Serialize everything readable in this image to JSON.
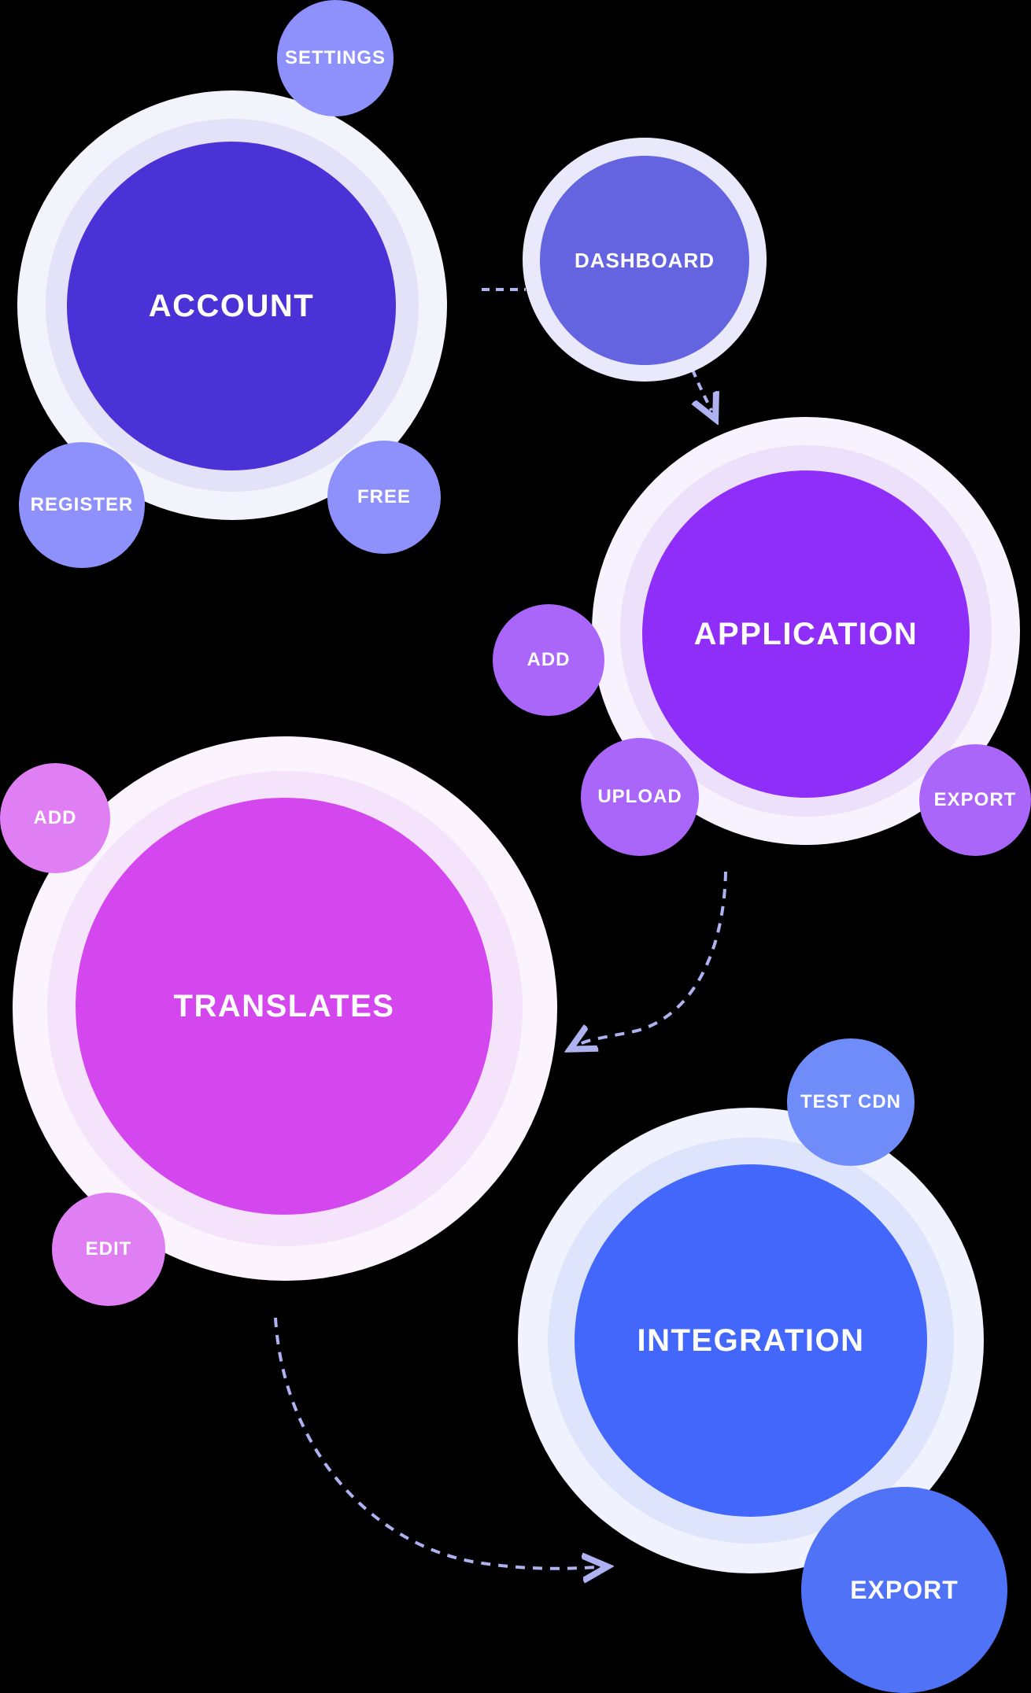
{
  "nodes": {
    "account": {
      "label": "ACCOUNT",
      "color": "#4b32d6",
      "children": {
        "settings": "SETTINGS",
        "register": "REGISTER",
        "free": "FREE"
      },
      "child_color": "#8e91fb"
    },
    "dashboard": {
      "label": "DASHBOARD",
      "color": "#6464e0"
    },
    "application": {
      "label": "APPLICATION",
      "color": "#8e2ef8",
      "children": {
        "add": "ADD",
        "upload": "UPLOAD",
        "export": "EXPORT"
      },
      "child_color": "#a966f8"
    },
    "translates": {
      "label": "TRANSLATES",
      "color": "#d447ee",
      "children": {
        "add": "ADD",
        "edit": "EDIT"
      },
      "child_color": "#e07ef3"
    },
    "integration": {
      "label": "INTEGRATION",
      "color": "#4267fa",
      "children": {
        "test_cdn": "TEST CDN",
        "export": "EXPORT"
      },
      "child_color": "#6f8cf8",
      "export_color": "#4f72f6"
    }
  },
  "connector_color": "#aeb2f0"
}
